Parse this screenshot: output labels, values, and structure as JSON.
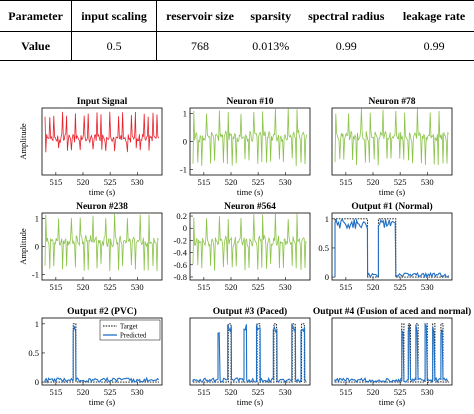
{
  "table": {
    "headers": [
      "Parameter",
      "input scaling",
      "reservoir size",
      "sparsity",
      "spectral radius",
      "leakage rate"
    ],
    "row_label": "Value",
    "values": [
      "0.5",
      "768",
      "0.013%",
      "0.99",
      "0.99"
    ]
  },
  "colors": {
    "input": "#e8202a",
    "neuron": "#8bc34a",
    "predicted": "#1f6fc5",
    "target": "#000000"
  },
  "chart_data": [
    {
      "type": "line",
      "title": "Input Signal",
      "ylabel": "Amplitude",
      "xlabel": "time (s)",
      "x_ticks": [
        "515",
        "520",
        "525",
        "530"
      ],
      "y_ticks": [],
      "xlim": [
        513,
        534
      ],
      "series": [
        {
          "color": "red",
          "form": "ecg"
        }
      ]
    },
    {
      "type": "line",
      "title": "Neuron #10",
      "ylabel": "",
      "xlabel": "time (s)",
      "x_ticks": [
        "515",
        "520",
        "525",
        "530"
      ],
      "y_ticks": [
        "-1",
        "0",
        "1"
      ],
      "ylim": [
        -1.2,
        1.2
      ],
      "xlim": [
        513,
        534
      ],
      "series": [
        {
          "color": "green",
          "form": "neuron"
        }
      ]
    },
    {
      "type": "line",
      "title": "Neuron #78",
      "ylabel": "",
      "xlabel": "time (s)",
      "x_ticks": [
        "515",
        "520",
        "525",
        "530"
      ],
      "y_ticks": [],
      "xlim": [
        513,
        534
      ],
      "series": [
        {
          "color": "green",
          "form": "neuron"
        }
      ]
    },
    {
      "type": "line",
      "title": "Neuron #238",
      "ylabel": "Amplitude",
      "xlabel": "",
      "x_ticks": [
        "515",
        "520",
        "525",
        "530"
      ],
      "y_ticks": [
        "-1",
        "0",
        "1"
      ],
      "ylim": [
        -1.2,
        1.2
      ],
      "xlim": [
        513,
        534
      ],
      "series": [
        {
          "color": "green",
          "form": "neuron"
        }
      ]
    },
    {
      "type": "line",
      "title": "Neuron #564",
      "ylabel": "",
      "xlabel": "",
      "x_ticks": [
        "515",
        "520",
        "525",
        "530"
      ],
      "y_ticks": [
        "0.2",
        "0",
        "-0.2",
        "-0.4",
        "-0.6",
        "-0.8"
      ],
      "ylim": [
        -0.85,
        0.25
      ],
      "xlim": [
        513,
        534
      ],
      "series": [
        {
          "color": "green",
          "form": "neuron"
        }
      ]
    },
    {
      "type": "line",
      "title": "Output #1 (Normal)",
      "ylabel": "",
      "xlabel": "",
      "x_ticks": [
        "515",
        "520",
        "525",
        "530"
      ],
      "y_ticks": [
        "0",
        "0.5",
        "1"
      ],
      "ylim": [
        -0.05,
        1.1
      ],
      "xlim": [
        513,
        534
      ],
      "series": [
        {
          "name": "Target",
          "form": "target",
          "pulses": [
            [
              513,
              519
            ],
            [
              521,
              524.2
            ]
          ]
        },
        {
          "name": "Predicted",
          "form": "predicted",
          "pulses": [
            [
              513,
              519
            ],
            [
              521,
              524.2
            ]
          ]
        }
      ]
    },
    {
      "type": "line",
      "title": "Output #2 (PVC)",
      "ylabel": "",
      "xlabel": "time (s)",
      "x_ticks": [
        "515",
        "520",
        "525",
        "530"
      ],
      "y_ticks": [
        "0",
        "0.5",
        "1"
      ],
      "ylim": [
        -0.05,
        1.1
      ],
      "xlim": [
        513,
        534
      ],
      "legend": [
        "Target",
        "Predicted"
      ],
      "legend_position": "top-right",
      "series": [
        {
          "name": "Target",
          "form": "target",
          "pulses": [
            [
              518.2,
              518.7
            ]
          ]
        },
        {
          "name": "Predicted",
          "form": "predicted",
          "pulses": [
            [
              518.2,
              518.7
            ]
          ]
        }
      ]
    },
    {
      "type": "line",
      "title": "Output #3 (Paced)",
      "ylabel": "",
      "xlabel": "time (s)",
      "x_ticks": [
        "515",
        "520",
        "525",
        "530"
      ],
      "y_ticks": [],
      "ylim": [
        -0.05,
        1.1
      ],
      "xlim": [
        513,
        534
      ],
      "series": [
        {
          "name": "Target",
          "form": "target",
          "pulses": [
            [
              519.5,
              520
            ],
            [
              524.8,
              525.3
            ],
            [
              527.9,
              528.4
            ],
            [
              531.3,
              531.8
            ],
            [
              533,
              533.5
            ]
          ]
        },
        {
          "name": "Predicted",
          "form": "predicted",
          "pulses": [
            [
              517.6,
              518
            ],
            [
              519.4,
              520.1
            ],
            [
              522.4,
              522.9
            ],
            [
              524.7,
              525.4
            ],
            [
              527.8,
              528.5
            ],
            [
              531.2,
              531.9
            ],
            [
              532.9,
              533.6
            ]
          ]
        }
      ]
    },
    {
      "type": "line",
      "title": "Output #4 (Fusion of aced and normal)",
      "ylabel": "",
      "xlabel": "time (s)",
      "x_ticks": [
        "515",
        "520",
        "525",
        "530"
      ],
      "y_ticks": [],
      "ylim": [
        -0.05,
        1.1
      ],
      "xlim": [
        513,
        534
      ],
      "series": [
        {
          "name": "Target",
          "form": "target",
          "pulses": [
            [
              525.3,
              525.7
            ],
            [
              526.5,
              526.9
            ],
            [
              527.9,
              528.3
            ],
            [
              529.6,
              530
            ],
            [
              531,
              531.4
            ],
            [
              532.5,
              532.9
            ]
          ]
        },
        {
          "name": "Predicted",
          "form": "predicted",
          "pulses": [
            [
              525.3,
              525.7
            ],
            [
              526.5,
              526.9
            ],
            [
              527.9,
              528.3
            ],
            [
              529.6,
              530
            ],
            [
              531,
              531.4
            ],
            [
              532.5,
              532.9
            ]
          ]
        }
      ]
    }
  ]
}
